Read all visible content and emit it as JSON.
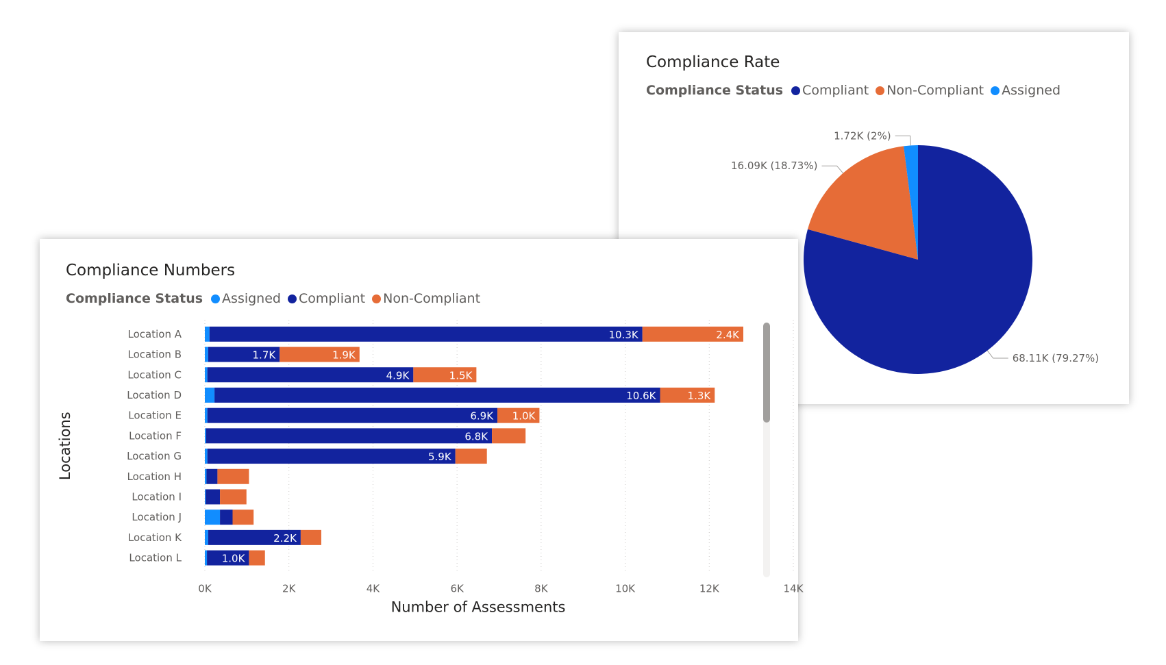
{
  "colors": {
    "assigned": "#118DFF",
    "compliant": "#12239E",
    "non_compliant": "#E66C37"
  },
  "pie_card": {
    "title": "Compliance Rate",
    "legend_title": "Compliance Status",
    "legend": [
      {
        "label": "Compliant",
        "color": "#12239E"
      },
      {
        "label": "Non-Compliant",
        "color": "#E66C37"
      },
      {
        "label": "Assigned",
        "color": "#118DFF"
      }
    ]
  },
  "bar_card": {
    "title": "Compliance Numbers",
    "legend_title": "Compliance Status",
    "legend": [
      {
        "label": "Assigned",
        "color": "#118DFF"
      },
      {
        "label": "Compliant",
        "color": "#12239E"
      },
      {
        "label": "Non-Compliant",
        "color": "#E66C37"
      }
    ]
  },
  "chart_data": [
    {
      "type": "pie",
      "title": "Compliance Rate",
      "legend_title": "Compliance Status",
      "slices": [
        {
          "name": "Compliant",
          "value": 68110,
          "label": "68.11K (79.27%)"
        },
        {
          "name": "Non-Compliant",
          "value": 16090,
          "label": "16.09K (18.73%)"
        },
        {
          "name": "Assigned",
          "value": 1720,
          "label": "1.72K (2%)"
        }
      ]
    },
    {
      "type": "bar",
      "orientation": "horizontal",
      "stacked": true,
      "title": "Compliance Numbers",
      "legend_title": "Compliance Status",
      "xlabel": "Number of Assessments",
      "ylabel": "Locations",
      "xlim": [
        0,
        14000
      ],
      "xticks": [
        0,
        2000,
        4000,
        6000,
        8000,
        10000,
        12000,
        14000
      ],
      "xtick_labels": [
        "0K",
        "2K",
        "4K",
        "6K",
        "8K",
        "10K",
        "12K",
        "14K"
      ],
      "grid": true,
      "categories": [
        "Location A",
        "Location B",
        "Location C",
        "Location D",
        "Location E",
        "Location F",
        "Location G",
        "Location H",
        "Location I",
        "Location J",
        "Location K",
        "Location L"
      ],
      "series": [
        {
          "name": "Assigned",
          "values": [
            110,
            80,
            60,
            230,
            60,
            30,
            60,
            40,
            20,
            360,
            80,
            50
          ],
          "labels": [
            "",
            "",
            "",
            "",
            "",
            "",
            "",
            "",
            "",
            "",
            "",
            ""
          ]
        },
        {
          "name": "Compliant",
          "values": [
            10300,
            1700,
            4900,
            10600,
            6900,
            6800,
            5900,
            260,
            340,
            300,
            2200,
            1000
          ],
          "labels": [
            "10.3K",
            "1.7K",
            "4.9K",
            "10.6K",
            "6.9K",
            "6.8K",
            "5.9K",
            "",
            "",
            "",
            "2.2K",
            "1.0K"
          ]
        },
        {
          "name": "Non-Compliant",
          "values": [
            2400,
            1900,
            1500,
            1300,
            1000,
            800,
            750,
            750,
            630,
            500,
            490,
            380
          ],
          "labels": [
            "2.4K",
            "1.9K",
            "1.5K",
            "1.3K",
            "1.0K",
            "",
            "",
            "",
            "",
            "",
            "",
            ""
          ]
        }
      ]
    }
  ]
}
